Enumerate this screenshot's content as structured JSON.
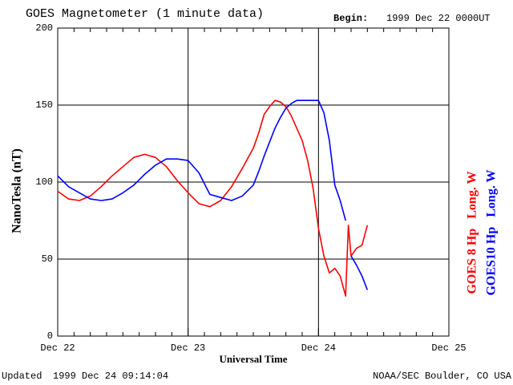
{
  "chart_data": {
    "type": "line",
    "title": "GOES Magnetometer (1 minute data)",
    "begin_label": "Begin:",
    "begin": "1999 Dec 22 0000UT",
    "y_label": "NanoTesla (nT)",
    "x_label": "Universal Time",
    "updated_label": "Updated",
    "updated": "1999 Dec 24 09:14:04",
    "credit": "NOAA/SEC Boulder, CO USA",
    "xlim": [
      0,
      72
    ],
    "xticks": [
      {
        "value": 0,
        "label": "Dec 22"
      },
      {
        "value": 24,
        "label": "Dec 23"
      },
      {
        "value": 48,
        "label": "Dec 24"
      },
      {
        "value": 72,
        "label": "Dec 25"
      }
    ],
    "ylim": [
      0,
      200
    ],
    "yticks": [
      0,
      50,
      100,
      150,
      200
    ],
    "grid": true,
    "x": [
      0,
      2,
      4,
      6,
      8,
      10,
      12,
      14,
      16,
      18,
      20,
      22,
      24,
      26,
      28,
      30,
      32,
      34,
      36,
      37,
      38,
      39,
      40,
      41,
      42,
      43,
      44,
      45,
      46,
      47,
      48,
      49,
      50,
      51,
      52,
      53,
      53.5,
      54,
      55,
      56,
      57
    ],
    "series": [
      {
        "name": "GOES 8 Hp   Long. W",
        "color": "#ff0000",
        "values": [
          94,
          89,
          88,
          91,
          97,
          104,
          110,
          116,
          118,
          116,
          110,
          101,
          93,
          86,
          84,
          88,
          97,
          109,
          122,
          132,
          144,
          149,
          153,
          152,
          149,
          143,
          135,
          127,
          114,
          96,
          70,
          52,
          41,
          44,
          39,
          26,
          72,
          52,
          57,
          59,
          72
        ]
      },
      {
        "name": "GOES10 Hp   Long. W",
        "color": "#0000ff",
        "values": [
          104,
          97,
          93,
          89,
          88,
          89,
          93,
          98,
          105,
          111,
          115,
          115,
          114,
          106,
          92,
          90,
          88,
          91,
          98,
          107,
          117,
          126,
          135,
          142,
          148,
          151,
          153,
          153,
          153,
          153,
          153,
          145,
          127,
          98,
          88,
          75,
          null,
          52,
          46,
          39,
          30
        ]
      }
    ]
  }
}
